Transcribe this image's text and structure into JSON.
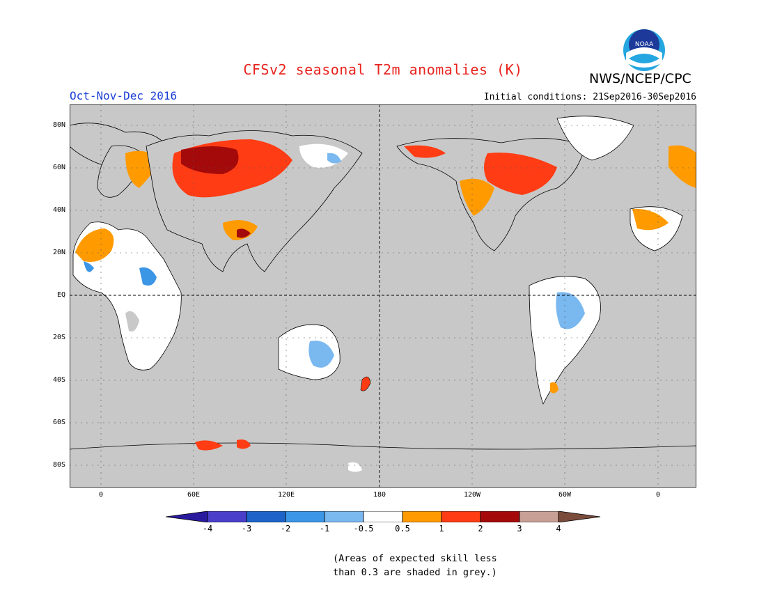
{
  "header": {
    "title": "CFSv2 seasonal T2m anomalies (K)",
    "org": "NWS/NCEP/CPC",
    "period": "Oct-Nov-Dec 2016",
    "initial_conditions": "Initial conditions: 21Sep2016-30Sep2016",
    "logo_text": "NOAA"
  },
  "map": {
    "ocean_color": "#c8c8c8",
    "lat_labels": [
      "80N",
      "60N",
      "40N",
      "20N",
      "EQ",
      "20S",
      "40S",
      "60S",
      "80S"
    ],
    "lon_labels": [
      "0",
      "60E",
      "120E",
      "180",
      "120W",
      "60W",
      "0"
    ]
  },
  "colorbar": {
    "labels": [
      "-4",
      "-3",
      "-2",
      "-1",
      "-0.5",
      "0.5",
      "1",
      "2",
      "3",
      "4"
    ],
    "colors": [
      "#2a1a9e",
      "#4a3fc8",
      "#1e64c8",
      "#3c96e6",
      "#7ab8f0",
      "#ffffff",
      "#ff9b00",
      "#ff3c14",
      "#a50a0a",
      "#c8a096",
      "#7b4b3c"
    ]
  },
  "note": {
    "line1": "(Areas of expected skill less",
    "line2": "than 0.3 are shaded in grey.)"
  }
}
